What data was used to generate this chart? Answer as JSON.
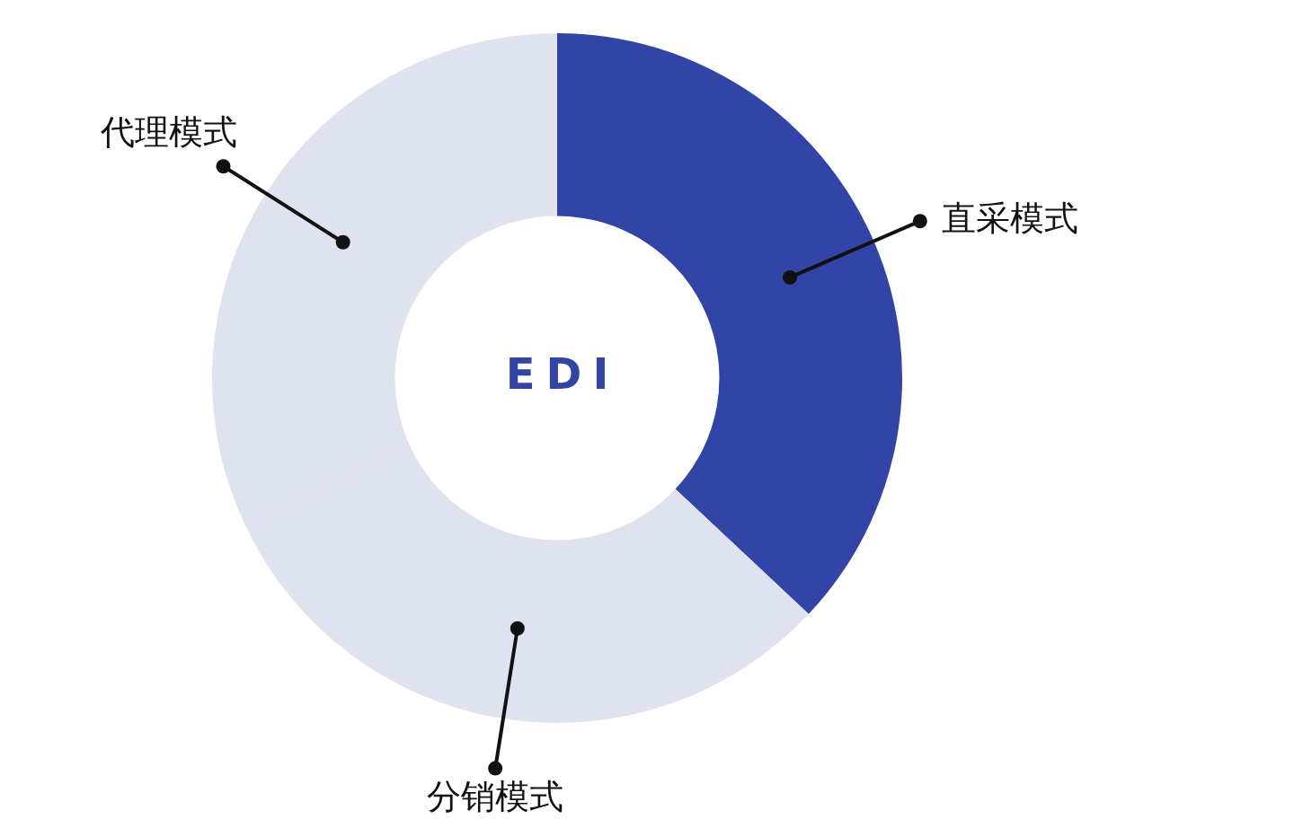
{
  "chart_data": {
    "type": "donut",
    "title": "EDI",
    "categories": [
      "直采模式",
      "分销模式",
      "代理模式"
    ],
    "values": [
      37,
      31,
      32
    ],
    "colors": [
      "#3244a5",
      "#dfe3ef",
      "#dfe3ef"
    ],
    "legend": false
  }
}
